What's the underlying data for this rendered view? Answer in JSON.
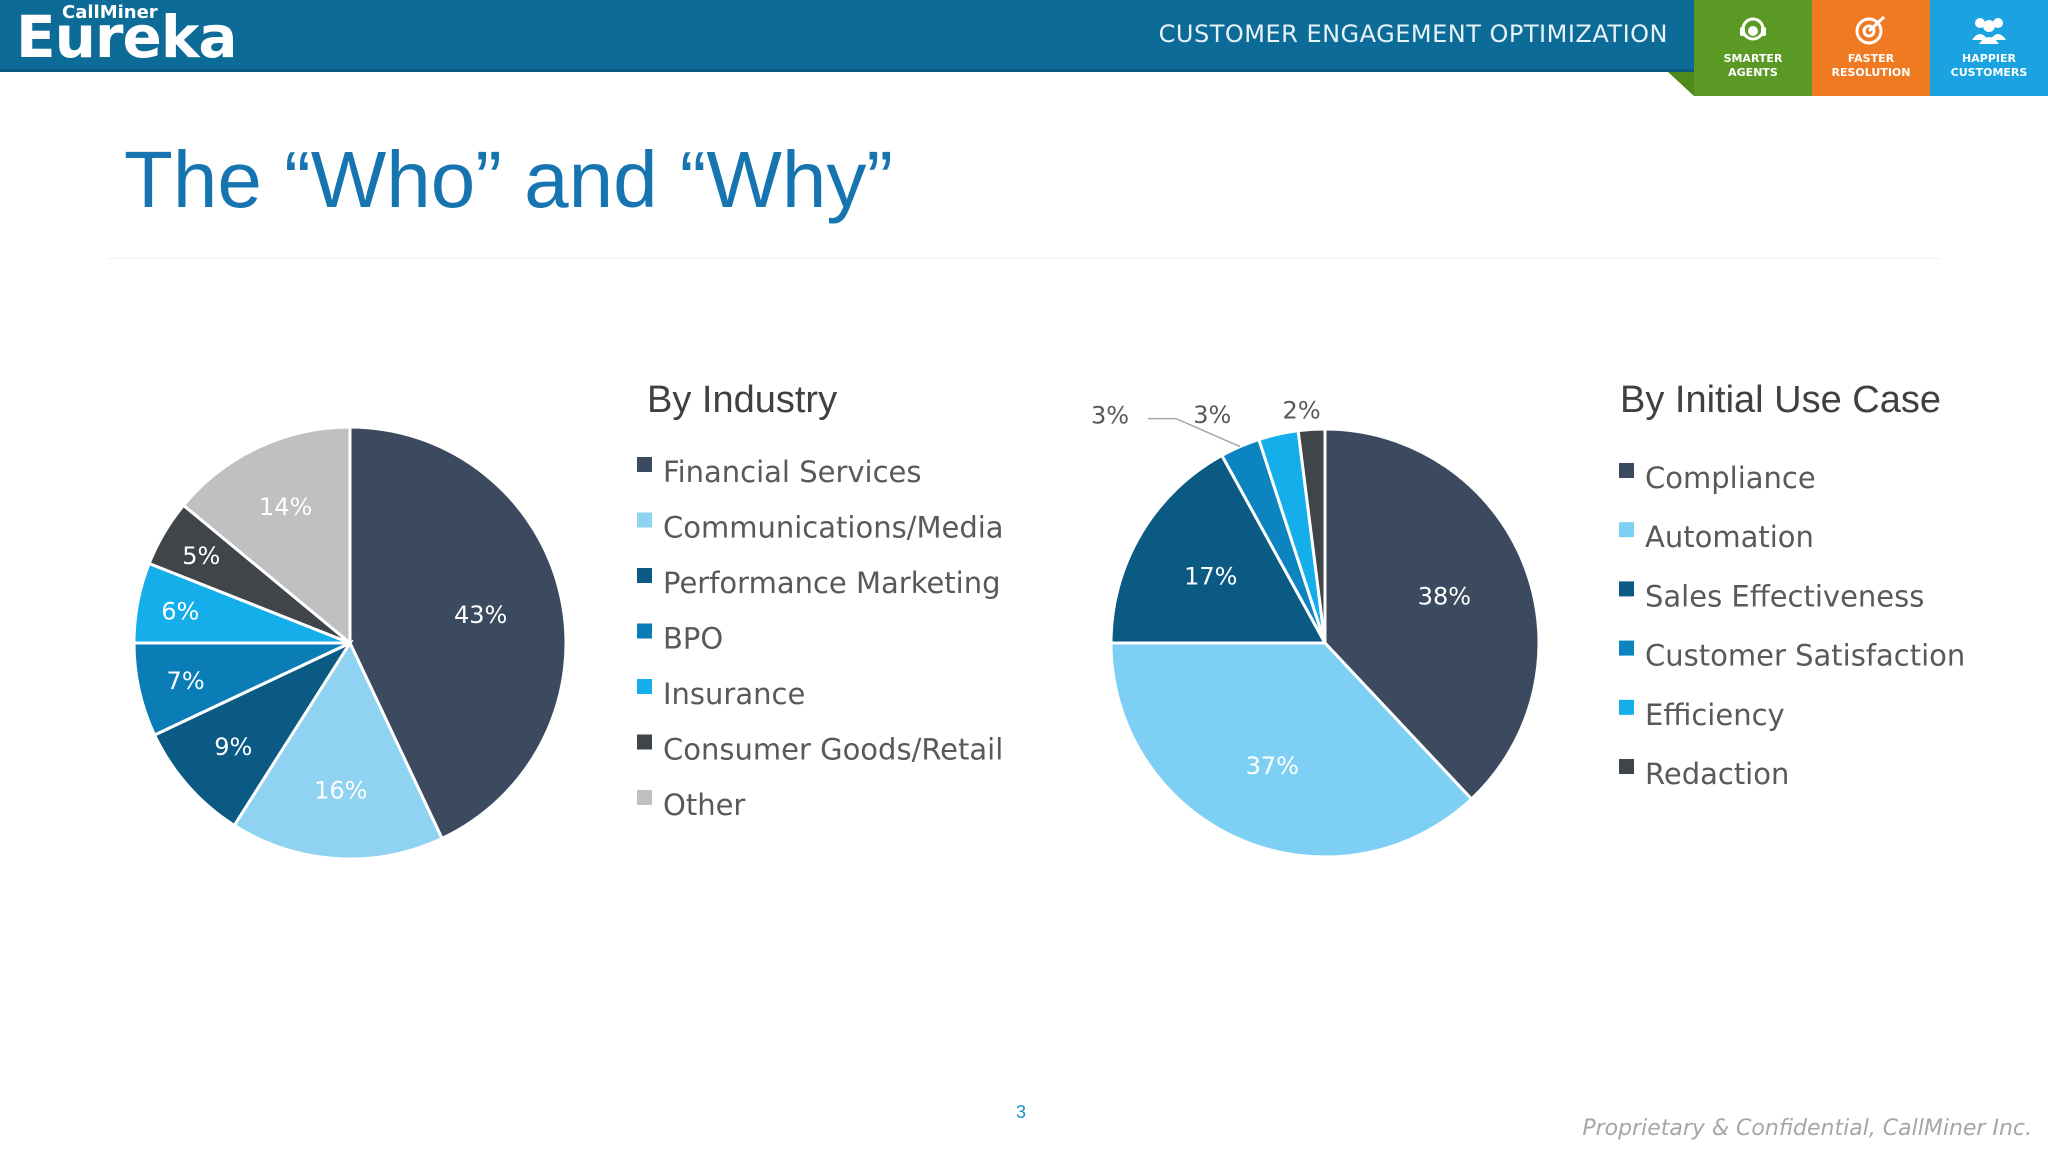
{
  "header": {
    "brand_small": "CallMiner",
    "brand_big": "Eureka",
    "tagline": "CUSTOMER ENGAGEMENT OPTIMIZATION",
    "badges": [
      {
        "label": "SMARTER\nAGENTS",
        "color": "#5a9a24",
        "icon": "headset-icon"
      },
      {
        "label": "FASTER\nRESOLUTION",
        "color": "#f07a22",
        "icon": "target-icon"
      },
      {
        "label": "HAPPIER\nCUSTOMERS",
        "color": "#1aa3e0",
        "icon": "people-icon"
      }
    ]
  },
  "page_title": "The “Who” and “Why”",
  "page_number": "3",
  "footer": "Proprietary & Confidential, CallMiner Inc.",
  "chart_data": [
    {
      "type": "pie",
      "title": "By Industry",
      "legend_placement": "right",
      "categories": [
        "Financial Services",
        "Communications/Media",
        "Performance Marketing",
        "BPO",
        "Insurance",
        "Consumer Goods/Retail",
        "Other"
      ],
      "values": [
        43,
        16,
        9,
        7,
        6,
        5,
        14
      ],
      "labels": [
        "43%",
        "16%",
        "9%",
        "7%",
        "6%",
        "5%",
        "14%"
      ],
      "colors": [
        "#3b4a5e",
        "#8fd2f2",
        "#0a5a83",
        "#0b7db6",
        "#14aeea",
        "#404549",
        "#c0bfc2"
      ],
      "label_colors": [
        "#ffffff",
        "#ffffff",
        "#ffffff",
        "#ffffff",
        "#ffffff",
        "#ffffff",
        "#ffffff"
      ]
    },
    {
      "type": "pie",
      "title": "By Initial Use Case",
      "legend_placement": "right",
      "categories": [
        "Compliance",
        "Automation",
        "Sales Effectiveness",
        "Customer Satisfaction",
        "Efficiency",
        "Redaction"
      ],
      "values": [
        38,
        37,
        17,
        3,
        3,
        2
      ],
      "labels": [
        "38%",
        "37%",
        "17%",
        "3%",
        "3%",
        "2%"
      ],
      "colors": [
        "#3b4a5e",
        "#7dcff3",
        "#0a5a83",
        "#0b84bf",
        "#14aeea",
        "#404549"
      ],
      "label_colors": [
        "#ffffff",
        "#ffffff",
        "#ffffff",
        "#595959",
        "#595959",
        "#595959"
      ]
    }
  ]
}
